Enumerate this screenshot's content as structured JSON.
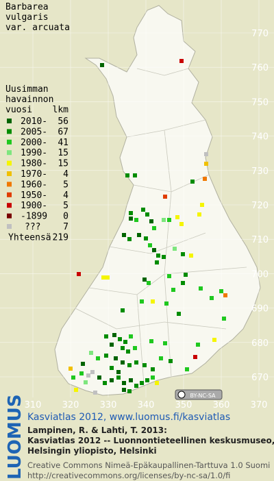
{
  "title": [
    "Barbarea",
    "vulgaris",
    "var. arcuata"
  ],
  "legend": {
    "heading": [
      "Uusimman",
      "havainnon"
    ],
    "col_period": "vuosi",
    "col_count": "lkm",
    "rows": [
      {
        "label": "2010-",
        "count": 56,
        "color": "#006400"
      },
      {
        "label": "2005-",
        "count": 67,
        "color": "#008c00"
      },
      {
        "label": "2000-",
        "count": 41,
        "color": "#1fc81f"
      },
      {
        "label": "1990-",
        "count": 15,
        "color": "#7ee67e"
      },
      {
        "label": "1980-",
        "count": 15,
        "color": "#f5f500"
      },
      {
        "label": "1970-",
        "count": 4,
        "color": "#f0c000"
      },
      {
        "label": "1960-",
        "count": 5,
        "color": "#f07800"
      },
      {
        "label": "1950-",
        "count": 4,
        "color": "#e03c00"
      },
      {
        "label": "1900-",
        "count": 5,
        "color": "#c80000"
      },
      {
        "label": "-1899",
        "count": 0,
        "color": "#780000"
      },
      {
        "label": "???",
        "count": 7,
        "color": "#c0c0c0"
      }
    ],
    "total_label": "Yhteensä",
    "total": 219
  },
  "grid": {
    "x_labels": [
      310,
      320,
      330,
      340,
      350,
      360,
      370
    ],
    "y_labels": [
      770,
      760,
      750,
      740,
      730,
      720,
      710,
      700,
      690,
      680,
      670
    ]
  },
  "license_badge": "BY-NC-SA",
  "side_logo": "LUOMUS",
  "footer": {
    "link": "Kasviatlas 2012, www.luomus.fi/kasviatlas",
    "citation": [
      "Lampinen, R. & Lahti, T. 2013:",
      "Kasviatlas 2012 -- Luonnontieteellinen keskusmuseo,",
      "Helsingin yliopisto, Helsinki"
    ],
    "license": [
      "Creative Commons Nimeä-Epäkaupallinen-Tarttuva 1.0 Suomi",
      "http://creativecommons.org/licenses/by-nc-sa/1.0/fi"
    ]
  }
}
